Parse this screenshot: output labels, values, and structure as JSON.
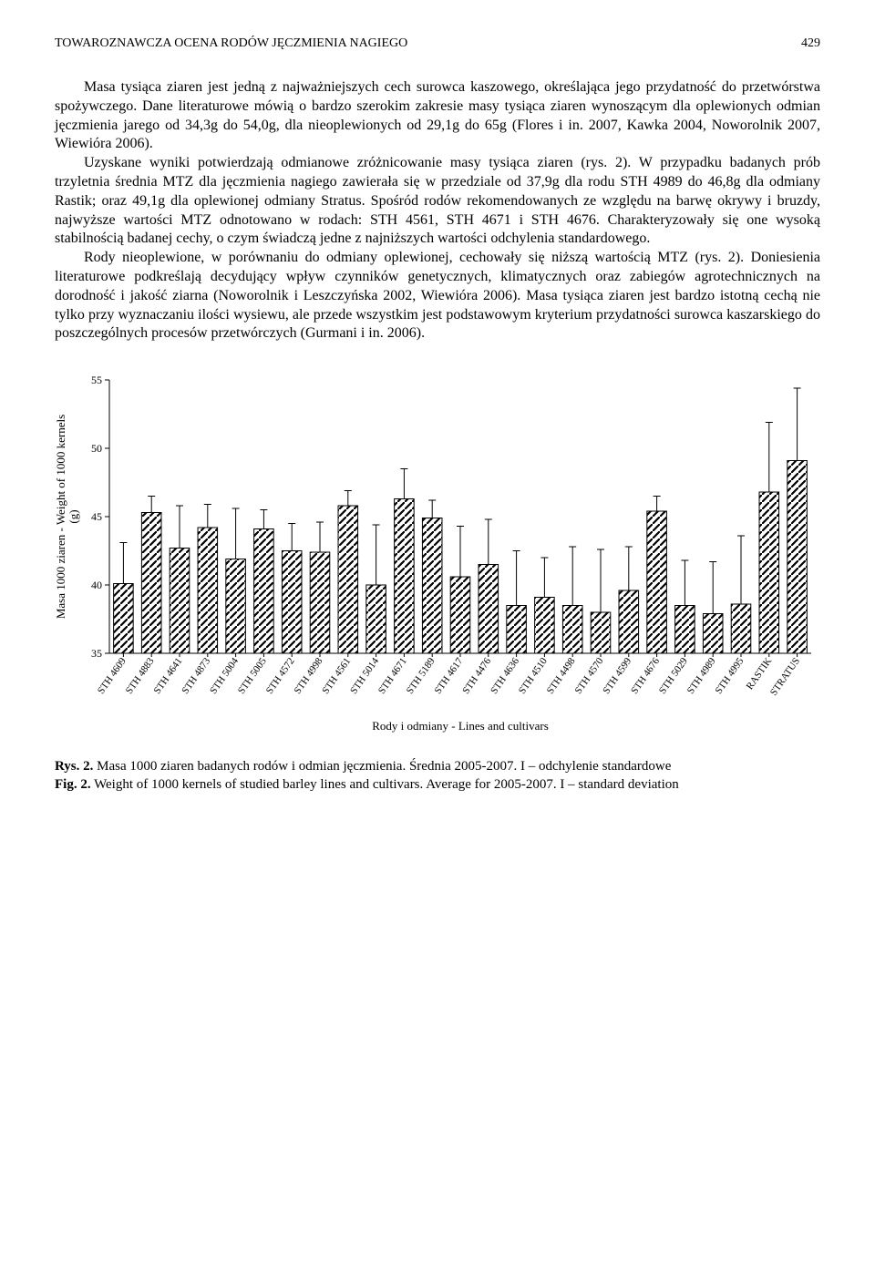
{
  "header": {
    "running_title": "TOWAROZNAWCZA OCENA RODÓW JĘCZMIENIA NAGIEGO",
    "page_number": "429"
  },
  "body": {
    "para1": "Masa tysiąca ziaren jest jedną z najważniejszych cech surowca kaszowego, określająca jego przydatność do przetwórstwa spożywczego. Dane literaturowe mówią o bardzo szerokim zakresie masy tysiąca ziaren wynoszącym dla oplewionych odmian jęczmienia jarego od 34,3g do 54,0g, dla nieoplewionych od 29,1g do 65g (Flores i in. 2007, Kawka 2004, Noworolnik 2007, Wiewióra 2006).",
    "para2": "Uzyskane wyniki potwierdzają odmianowe zróżnicowanie masy tysiąca ziaren (rys. 2). W przypadku badanych prób trzyletnia średnia MTZ dla jęczmienia nagiego zawierała się w przedziale od 37,9g dla rodu STH 4989 do 46,8g dla odmiany Rastik; oraz 49,1g dla oplewionej odmiany Stratus. Spośród rodów rekomendowanych ze względu na barwę okrywy i bruzdy, najwyższe wartości MTZ odnotowano w rodach: STH 4561, STH 4671 i STH 4676. Charakteryzowały się one wysoką stabilnością badanej cechy, o czym świadczą jedne z najniższych wartości odchylenia standardowego.",
    "para3": "Rody nieoplewione, w porównaniu do odmiany oplewionej, cechowały się niższą wartością MTZ (rys. 2). Doniesienia literaturowe podkreślają decydujący wpływ czynników genetycznych, klimatycznych oraz zabiegów agrotechnicznych na dorodność i jakość ziarna (Noworolnik i Leszczyńska 2002, Wiewióra 2006). Masa tysiąca ziaren jest bardzo istotną cechą nie tylko przy wyznaczaniu ilości wysiewu, ale przede wszystkim jest podstawowym kryterium przydatności surowca kaszarskiego do poszczególnych procesów przetwórczych (Gurmani i in. 2006)."
  },
  "chart": {
    "type": "bar",
    "ylabel": "Masa 1000 ziaren - Weight of 1000 kernels\n(g)",
    "xlabel": "Rody i odmiany - Lines and cultivars",
    "ylim": [
      35,
      55
    ],
    "ytick_step": 5,
    "yticks": [
      35,
      40,
      45,
      50,
      55
    ],
    "bar_fill": "#ffffff",
    "bar_stroke": "#000000",
    "hatch_color": "#000000",
    "background_color": "#ffffff",
    "grid": false,
    "categories": [
      "STH 4609",
      "STH 4883",
      "STH 4641",
      "STH 4873",
      "STH 5004",
      "STH 5005",
      "STH 4572",
      "STH 4998",
      "STH 4561",
      "STH 5014",
      "STH 4671",
      "STH 5189",
      "STH 4617",
      "STH 4476",
      "STH 4636",
      "STH 4510",
      "STH 4498",
      "STH 4570",
      "STH 4599",
      "STH 4676",
      "STH 5029",
      "STH 4989",
      "STH 4995",
      "RASTIK",
      "STRATUS"
    ],
    "values": [
      40.1,
      45.3,
      42.7,
      44.2,
      41.9,
      44.1,
      42.5,
      42.4,
      45.8,
      40.0,
      46.3,
      44.9,
      40.6,
      41.5,
      38.5,
      39.1,
      38.5,
      38.0,
      39.6,
      45.4,
      38.5,
      37.9,
      38.6,
      46.8,
      49.1
    ],
    "errors": [
      3.0,
      1.2,
      3.1,
      1.7,
      3.7,
      1.4,
      2.0,
      2.2,
      1.1,
      4.4,
      2.2,
      1.3,
      3.7,
      3.3,
      4.0,
      2.9,
      4.3,
      4.6,
      3.2,
      1.1,
      3.3,
      3.8,
      5.0,
      5.1,
      5.3
    ],
    "bar_width_ratio": 0.7,
    "error_cap_width": 4,
    "label_fontsize": 12,
    "tick_fontsize": 11
  },
  "caption": {
    "rys_bold": "Rys. 2.",
    "rys_text": " Masa 1000 ziaren badanych rodów i odmian jęczmienia. Średnia 2005-2007. I – odchylenie standardowe",
    "fig_bold": "Fig. 2.",
    "fig_text": " Weight of 1000 kernels of studied barley lines and cultivars. Average for 2005-2007. I – standard deviation"
  }
}
